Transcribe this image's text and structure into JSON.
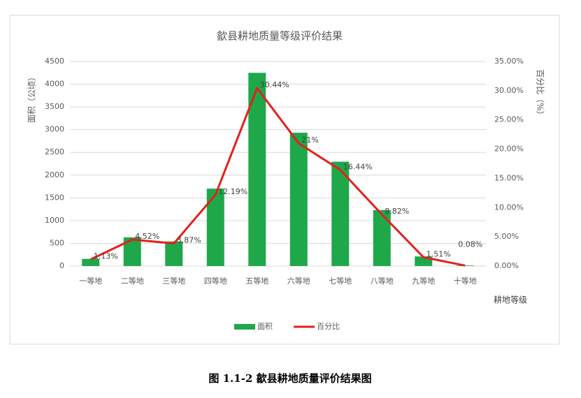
{
  "chart_data": {
    "type": "bar",
    "title": "歙县耕地质量等级评价结果",
    "y_label": "面积（公顷）",
    "y2_label": "百分比（%）",
    "x_label": "耕地等级",
    "categories": [
      "一等地",
      "二等地",
      "三等地",
      "四等地",
      "五等地",
      "六等地",
      "七等地",
      "八等地",
      "九等地",
      "十等地"
    ],
    "series": [
      {
        "name": "面积",
        "type": "bar",
        "color": "#1ea84a",
        "values": [
          158,
          631,
          540,
          1702,
          4250,
          2932,
          2295,
          1231,
          211,
          11
        ]
      },
      {
        "name": "百分比",
        "type": "line",
        "axis": "y2",
        "color": "#e3201c",
        "values": [
          1.13,
          4.52,
          3.87,
          12.19,
          30.44,
          21,
          16.44,
          8.82,
          1.51,
          0.08
        ],
        "value_labels": [
          "1.13%",
          "4.52%",
          "3.87%",
          "12.19%",
          "30.44%",
          "21%",
          "16.44%",
          "8.82%",
          "1.51%",
          "0.08%"
        ]
      }
    ],
    "ylim": [
      0,
      4500
    ],
    "yticks": [
      0,
      500,
      1000,
      1500,
      2000,
      2500,
      3000,
      3500,
      4000,
      4500
    ],
    "y2lim": [
      0,
      35
    ],
    "y2ticks": [
      {
        "value": 0,
        "label": "0.00%"
      },
      {
        "value": 5,
        "label": "5.00%"
      },
      {
        "value": 10,
        "label": "10.00%"
      },
      {
        "value": 15,
        "label": "15.00%"
      },
      {
        "value": 20,
        "label": "20.00%"
      },
      {
        "value": 25,
        "label": "25.00%"
      },
      {
        "value": 30,
        "label": "30.00%"
      },
      {
        "value": 35,
        "label": "35.00%"
      }
    ],
    "grid": true,
    "legend": "bottom"
  },
  "caption": "图 1.1-2  歙县耕地质量评价结果图"
}
